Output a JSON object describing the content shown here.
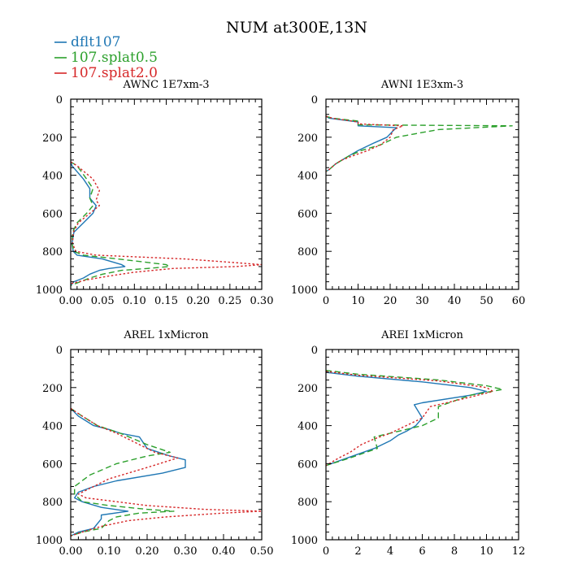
{
  "figure": {
    "title": "NUM at300E,13N"
  },
  "legend": [
    {
      "name": "dflt107",
      "color": "#1f77b4",
      "dash": "solid"
    },
    {
      "name": "107.splat0.5",
      "color": "#2ca02c",
      "dash": "dashed"
    },
    {
      "name": "107.splat2.0",
      "color": "#d62728",
      "dash": "dotted"
    }
  ],
  "chart_data": [
    {
      "type": "line",
      "title": "AWNC  1E7xm-3",
      "xlim": [
        0,
        0.3
      ],
      "ylim": [
        1000,
        0
      ],
      "xticks": [
        0,
        0.05,
        0.1,
        0.15,
        0.2,
        0.25,
        0.3
      ],
      "xtick_labels": [
        "0.00",
        "0.05",
        "0.10",
        "0.15",
        "0.20",
        "0.25",
        "0.30"
      ],
      "yticks": [
        0,
        200,
        400,
        600,
        800,
        1000
      ],
      "ytick_labels": [
        "0",
        "200",
        "400",
        "600",
        "800",
        "1000"
      ],
      "series": [
        {
          "name": "dflt107",
          "x": [
            0,
            0.002,
            0.02,
            0.03,
            0.03,
            0.04,
            0.035,
            0.02,
            0.005,
            0.002,
            0.004,
            0.01,
            0.05,
            0.08,
            0.085,
            0.06,
            0.045,
            0.03,
            0.02,
            0.005,
            0
          ],
          "y": [
            330,
            350,
            420,
            470,
            520,
            560,
            600,
            650,
            700,
            760,
            800,
            820,
            840,
            870,
            880,
            890,
            900,
            920,
            940,
            960,
            980
          ]
        },
        {
          "name": "107.splat0.5",
          "x": [
            0,
            0.01,
            0.025,
            0.035,
            0.03,
            0.035,
            0.025,
            0.01,
            0.003,
            0.002,
            0.005,
            0.02,
            0.1,
            0.15,
            0.155,
            0.12,
            0.08,
            0.05,
            0.03,
            0.015,
            0
          ],
          "y": [
            330,
            350,
            420,
            470,
            520,
            560,
            600,
            650,
            700,
            760,
            800,
            820,
            850,
            870,
            880,
            890,
            900,
            920,
            940,
            960,
            980
          ]
        },
        {
          "name": "107.splat2.0",
          "x": [
            0,
            0.01,
            0.035,
            0.045,
            0.04,
            0.045,
            0.03,
            0.012,
            0.004,
            0.003,
            0.008,
            0.04,
            0.18,
            0.26,
            0.3,
            0.26,
            0.16,
            0.1,
            0.06,
            0.025,
            0
          ],
          "y": [
            330,
            350,
            420,
            480,
            530,
            560,
            600,
            650,
            700,
            760,
            800,
            820,
            840,
            860,
            870,
            880,
            890,
            910,
            930,
            950,
            970
          ]
        }
      ]
    },
    {
      "type": "line",
      "title": "AWNI  1E3xm-3",
      "xlim": [
        0,
        60
      ],
      "ylim": [
        1000,
        0
      ],
      "xticks": [
        0,
        10,
        20,
        30,
        40,
        50,
        60
      ],
      "xtick_labels": [
        "0",
        "10",
        "20",
        "30",
        "40",
        "50",
        "60"
      ],
      "yticks": [
        0,
        200,
        400,
        600,
        800,
        1000
      ],
      "ytick_labels": [
        "0",
        "200",
        "400",
        "600",
        "800",
        "1000"
      ],
      "series": [
        {
          "name": "dflt107",
          "x": [
            0,
            1,
            10,
            10,
            22,
            21,
            19,
            15,
            10,
            7,
            5,
            3,
            1,
            0
          ],
          "y": [
            90,
            100,
            120,
            140,
            150,
            165,
            200,
            230,
            270,
            300,
            320,
            340,
            370,
            380
          ]
        },
        {
          "name": "107.splat0.5",
          "x": [
            0,
            2,
            10,
            10,
            58,
            35,
            22,
            17,
            11,
            7,
            5,
            3,
            1,
            0
          ],
          "y": [
            90,
            100,
            115,
            135,
            140,
            160,
            200,
            240,
            270,
            300,
            320,
            340,
            370,
            380
          ]
        },
        {
          "name": "107.splat2.0",
          "x": [
            0,
            2,
            10,
            10,
            24,
            21,
            20,
            17,
            13,
            8,
            5,
            3,
            1,
            0
          ],
          "y": [
            90,
            100,
            120,
            130,
            140,
            160,
            200,
            240,
            270,
            300,
            320,
            340,
            370,
            380
          ]
        }
      ]
    },
    {
      "type": "line",
      "title": "AREL  1xMicron",
      "xlim": [
        0,
        0.5
      ],
      "ylim": [
        1000,
        0
      ],
      "xticks": [
        0,
        0.1,
        0.2,
        0.3,
        0.4,
        0.5
      ],
      "xtick_labels": [
        "0.00",
        "0.10",
        "0.20",
        "0.30",
        "0.40",
        "0.50"
      ],
      "yticks": [
        0,
        200,
        400,
        600,
        800,
        1000
      ],
      "ytick_labels": [
        "0",
        "200",
        "400",
        "600",
        "800",
        "1000"
      ],
      "series": [
        {
          "name": "dflt107",
          "x": [
            0,
            0.02,
            0.06,
            0.1,
            0.13,
            0.18,
            0.2,
            0.26,
            0.3,
            0.3,
            0.24,
            0.12,
            0.06,
            0.02,
            0.01,
            0.03,
            0.08,
            0.15,
            0.08,
            0.08,
            0.06,
            0.02,
            0
          ],
          "y": [
            310,
            350,
            400,
            420,
            440,
            460,
            520,
            560,
            580,
            620,
            650,
            690,
            720,
            750,
            780,
            800,
            830,
            850,
            870,
            890,
            940,
            960,
            980
          ]
        },
        {
          "name": "107.splat0.5",
          "x": [
            0,
            0.03,
            0.07,
            0.1,
            0.13,
            0.2,
            0.26,
            0.2,
            0.12,
            0.05,
            0.01,
            0.01,
            0.03,
            0.1,
            0.2,
            0.27,
            0.18,
            0.12,
            0.1,
            0.08,
            0.03,
            0
          ],
          "y": [
            310,
            350,
            400,
            420,
            440,
            500,
            540,
            560,
            600,
            660,
            720,
            760,
            800,
            820,
            840,
            850,
            860,
            880,
            900,
            940,
            960,
            980
          ]
        },
        {
          "name": "107.splat2.0",
          "x": [
            0,
            0.03,
            0.07,
            0.12,
            0.18,
            0.22,
            0.28,
            0.2,
            0.1,
            0.04,
            0.02,
            0.04,
            0.2,
            0.35,
            0.5,
            0.4,
            0.25,
            0.15,
            0.08,
            0.03,
            0
          ],
          "y": [
            310,
            350,
            400,
            440,
            500,
            540,
            570,
            620,
            680,
            740,
            760,
            780,
            820,
            840,
            850,
            860,
            880,
            900,
            930,
            960,
            980
          ]
        }
      ]
    },
    {
      "type": "line",
      "title": "AREI  1xMicron",
      "xlim": [
        0,
        12
      ],
      "ylim": [
        1000,
        0
      ],
      "xticks": [
        0,
        2,
        4,
        6,
        8,
        10,
        12
      ],
      "xtick_labels": [
        "0",
        "2",
        "4",
        "6",
        "8",
        "10",
        "12"
      ],
      "yticks": [
        0,
        200,
        400,
        600,
        800,
        1000
      ],
      "ytick_labels": [
        "0",
        "200",
        "400",
        "600",
        "800",
        "1000"
      ],
      "series": [
        {
          "name": "dflt107",
          "x": [
            0,
            2,
            6,
            9,
            10,
            9,
            6,
            5.5,
            6,
            5.6,
            5,
            4.5,
            4,
            3,
            2,
            1,
            0
          ],
          "y": [
            120,
            140,
            170,
            200,
            220,
            240,
            280,
            290,
            360,
            400,
            430,
            450,
            480,
            520,
            550,
            580,
            610
          ]
        },
        {
          "name": "107.splat0.5",
          "x": [
            0,
            2,
            7,
            10,
            11,
            9,
            7,
            7,
            6,
            5,
            4,
            3,
            3.2,
            2.5,
            1.5,
            0
          ],
          "y": [
            110,
            130,
            160,
            190,
            210,
            240,
            300,
            360,
            400,
            420,
            440,
            460,
            520,
            540,
            570,
            610
          ]
        },
        {
          "name": "107.splat2.0",
          "x": [
            0,
            2,
            7,
            10,
            10.4,
            9,
            6.5,
            6,
            5.5,
            5,
            4,
            3,
            2.2,
            1.5,
            0.8,
            0
          ],
          "y": [
            115,
            135,
            165,
            200,
            220,
            250,
            300,
            360,
            380,
            400,
            440,
            470,
            500,
            540,
            570,
            610
          ]
        }
      ]
    }
  ]
}
